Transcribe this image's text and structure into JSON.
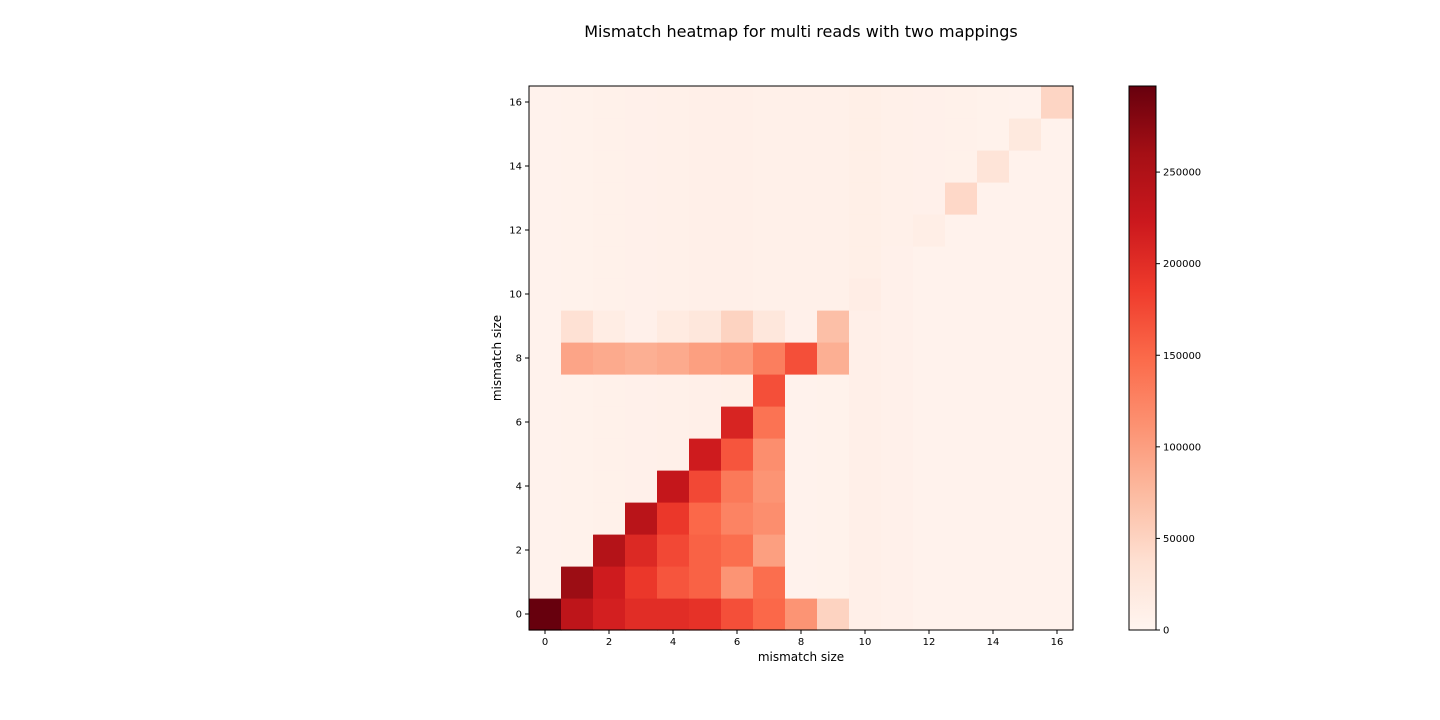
{
  "chart_data": {
    "type": "heatmap",
    "title": "Mismatch heatmap for multi reads with two mappings",
    "xlabel": "mismatch size",
    "ylabel": "mismatch size",
    "x_categories": [
      0,
      1,
      2,
      3,
      4,
      5,
      6,
      7,
      8,
      9,
      10,
      11,
      12,
      13,
      14,
      15,
      16
    ],
    "y_categories": [
      0,
      1,
      2,
      3,
      4,
      5,
      6,
      7,
      8,
      9,
      10,
      11,
      12,
      13,
      14,
      15,
      16
    ],
    "x_ticks": [
      "0",
      "2",
      "4",
      "6",
      "8",
      "10",
      "12",
      "14",
      "16"
    ],
    "y_ticks": [
      "0",
      "2",
      "4",
      "6",
      "8",
      "10",
      "12",
      "14",
      "16"
    ],
    "colorbar": {
      "min": 0,
      "max": 297000,
      "ticks": [
        "0",
        "50000",
        "100000",
        "150000",
        "200000",
        "250000"
      ],
      "colormap": "Reds",
      "stops": [
        "#fff5f0",
        "#fee0d2",
        "#fcbba1",
        "#fc9272",
        "#fb6a4a",
        "#ef3b2c",
        "#cb181d",
        "#a50f15",
        "#67000d"
      ]
    },
    "rows_bottom_to_top": [
      [
        297000,
        235000,
        215000,
        200000,
        200000,
        195000,
        170000,
        150000,
        110000,
        50000,
        10000,
        8000,
        5000,
        5000,
        5000,
        5000,
        5000
      ],
      [
        5000,
        265000,
        220000,
        190000,
        165000,
        155000,
        110000,
        145000,
        5000,
        6000,
        10000,
        8000,
        5000,
        5000,
        5000,
        5000,
        5000
      ],
      [
        5000,
        6000,
        245000,
        205000,
        175000,
        155000,
        145000,
        100000,
        5000,
        6000,
        10000,
        8000,
        5000,
        5000,
        5000,
        5000,
        5000
      ],
      [
        5000,
        6000,
        7000,
        240000,
        190000,
        150000,
        125000,
        115000,
        5000,
        6000,
        10000,
        8000,
        5000,
        5000,
        5000,
        5000,
        5000
      ],
      [
        5000,
        6000,
        7000,
        8000,
        230000,
        175000,
        135000,
        110000,
        5000,
        6000,
        10000,
        8000,
        5000,
        5000,
        5000,
        5000,
        5000
      ],
      [
        5000,
        6000,
        7000,
        8000,
        9000,
        220000,
        165000,
        115000,
        5000,
        6000,
        10000,
        8000,
        5000,
        5000,
        5000,
        5000,
        5000
      ],
      [
        5000,
        6000,
        7000,
        8000,
        9000,
        10000,
        210000,
        140000,
        5000,
        6000,
        10000,
        8000,
        5000,
        5000,
        5000,
        5000,
        5000
      ],
      [
        5000,
        6000,
        7000,
        8000,
        9000,
        10000,
        11000,
        170000,
        5000,
        6000,
        10000,
        8000,
        5000,
        5000,
        5000,
        5000,
        5000
      ],
      [
        5000,
        95000,
        90000,
        85000,
        90000,
        100000,
        105000,
        130000,
        170000,
        85000,
        10000,
        8000,
        5000,
        5000,
        5000,
        5000,
        5000
      ],
      [
        5000,
        35000,
        15000,
        8000,
        18000,
        25000,
        50000,
        25000,
        8000,
        70000,
        10000,
        8000,
        5000,
        5000,
        5000,
        5000,
        5000
      ],
      [
        5000,
        6000,
        7000,
        8000,
        9000,
        10000,
        10000,
        9000,
        9000,
        9000,
        14000,
        8000,
        5000,
        5000,
        5000,
        5000,
        5000
      ],
      [
        5000,
        6000,
        7000,
        8000,
        9000,
        10000,
        10000,
        9000,
        9000,
        9000,
        11000,
        8000,
        5000,
        5000,
        5000,
        5000,
        5000
      ],
      [
        5000,
        6000,
        7000,
        8000,
        9000,
        10000,
        10000,
        9000,
        9000,
        9000,
        11000,
        9000,
        12000,
        5000,
        5000,
        5000,
        5000
      ],
      [
        5000,
        6000,
        7000,
        8000,
        9000,
        10000,
        10000,
        9000,
        9000,
        9000,
        11000,
        9000,
        8000,
        45000,
        5000,
        5000,
        5000
      ],
      [
        5000,
        6000,
        7000,
        8000,
        9000,
        10000,
        10000,
        9000,
        9000,
        9000,
        11000,
        9000,
        8000,
        7000,
        30000,
        5000,
        5000
      ],
      [
        5000,
        6000,
        7000,
        8000,
        9000,
        10000,
        10000,
        9000,
        9000,
        9000,
        11000,
        9000,
        8000,
        7000,
        6000,
        22000,
        5000
      ],
      [
        5000,
        6000,
        7000,
        8000,
        9000,
        10000,
        10000,
        9000,
        9000,
        9000,
        11000,
        9000,
        8000,
        7000,
        6000,
        5000,
        48000
      ]
    ]
  }
}
